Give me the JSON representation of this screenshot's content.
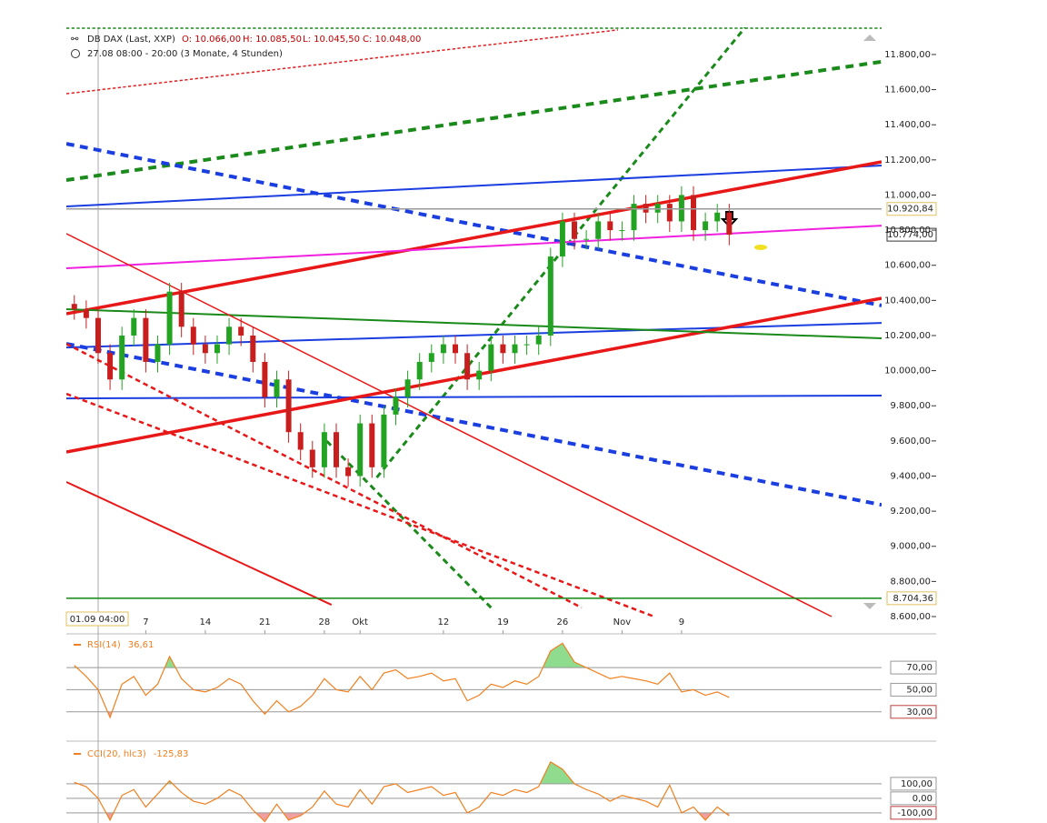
{
  "chart_data": [
    {
      "type": "candlestick",
      "title": "DB DAX (Last, XXP)",
      "ohlc_text": [
        "O: 10.066,00",
        "H: 10.085,50",
        "L: 10.045,50",
        "C: 10.048,00"
      ],
      "subtitle": "27.08 08:00 - 20:00 (3 Monate, 4 Stunden)",
      "crosshair_label": "01.09 04:00",
      "up_color": "#22a322",
      "down_color": "#c81e1e",
      "x": [
        -2,
        -1,
        0,
        1,
        2,
        3,
        4,
        5,
        6,
        7,
        8,
        9,
        10,
        11,
        12,
        13,
        14,
        15,
        16,
        17,
        18,
        19,
        20,
        21,
        22,
        23,
        24,
        25,
        26,
        27,
        28,
        29,
        30,
        31,
        32,
        33,
        34,
        35,
        36,
        37,
        38,
        39,
        40,
        41,
        42,
        43,
        44,
        45,
        46,
        47,
        48,
        49,
        50,
        51,
        52,
        53
      ],
      "open": [
        10380,
        10350,
        10300,
        10100,
        9950,
        10200,
        10300,
        10050,
        10150,
        10450,
        10250,
        10150,
        10100,
        10150,
        10250,
        10200,
        10050,
        9850,
        9950,
        9650,
        9550,
        9450,
        9650,
        9450,
        9400,
        9700,
        9450,
        9750,
        9850,
        9950,
        10050,
        10100,
        10150,
        10100,
        9950,
        10000,
        10150,
        10100,
        10150,
        10150,
        10200,
        10650,
        10850,
        10750,
        10750,
        10850,
        10800,
        10800,
        10950,
        10900,
        10950,
        10850,
        11000,
        10800,
        10850,
        10900
      ],
      "high": [
        10430,
        10400,
        10350,
        10150,
        10250,
        10350,
        10350,
        10200,
        10500,
        10500,
        10300,
        10200,
        10200,
        10300,
        10300,
        10250,
        10100,
        10000,
        10000,
        9700,
        9600,
        9700,
        9700,
        9500,
        9750,
        9750,
        9800,
        9900,
        10000,
        10100,
        10150,
        10200,
        10200,
        10150,
        10050,
        10200,
        10200,
        10200,
        10200,
        10250,
        10700,
        10900,
        10900,
        10800,
        10900,
        10900,
        10850,
        11000,
        11000,
        11000,
        11000,
        11050,
        11050,
        10900,
        10950,
        10950
      ],
      "low": [
        10290,
        10240,
        10040,
        9890,
        9890,
        10140,
        9990,
        9990,
        10090,
        10190,
        10090,
        10040,
        10040,
        10090,
        10140,
        9990,
        9790,
        9790,
        9590,
        9490,
        9390,
        9390,
        9390,
        9340,
        9340,
        9390,
        9390,
        9690,
        9790,
        9890,
        9990,
        10040,
        10040,
        9890,
        9890,
        9940,
        10040,
        10040,
        10090,
        10090,
        10140,
        10590,
        10690,
        10690,
        10690,
        10740,
        10740,
        10740,
        10840,
        10840,
        10790,
        10790,
        10740,
        10740,
        10790,
        10714
      ],
      "close": [
        10350,
        10300,
        10100,
        9950,
        10200,
        10300,
        10050,
        10150,
        10450,
        10250,
        10150,
        10100,
        10150,
        10250,
        10200,
        10050,
        9850,
        9950,
        9650,
        9550,
        9450,
        9650,
        9450,
        9400,
        9700,
        9450,
        9750,
        9850,
        9950,
        10050,
        10100,
        10150,
        10100,
        9950,
        10000,
        10150,
        10100,
        10150,
        10150,
        10200,
        10650,
        10850,
        10750,
        10750,
        10850,
        10800,
        10800,
        10950,
        10900,
        10950,
        10850,
        11000,
        10800,
        10850,
        10900,
        10774
      ],
      "xlim": [
        -2.67,
        65.8
      ],
      "ylim": [
        8512,
        11955
      ],
      "yticks": [
        {
          "value": 8600,
          "label": "8.600,00"
        },
        {
          "value": 8800,
          "label": "8.800,00"
        },
        {
          "value": 9000,
          "label": "9.000,00"
        },
        {
          "value": 9200,
          "label": "9.200,00"
        },
        {
          "value": 9400,
          "label": "9.400,00"
        },
        {
          "value": 9600,
          "label": "9.600,00"
        },
        {
          "value": 9800,
          "label": "9.800,00"
        },
        {
          "value": 10000,
          "label": "10.000,00"
        },
        {
          "value": 10200,
          "label": "10.200,00"
        },
        {
          "value": 10400,
          "label": "10.400,00"
        },
        {
          "value": 10600,
          "label": "10.600,00"
        },
        {
          "value": 10800,
          "label": "10.800,00"
        },
        {
          "value": 11000,
          "label": "11.000,00"
        },
        {
          "value": 11200,
          "label": "11.200,00"
        },
        {
          "value": 11400,
          "label": "11.400,00"
        },
        {
          "value": 11600,
          "label": "11.600,00"
        },
        {
          "value": 11800,
          "label": "11.800,00"
        }
      ],
      "xticks": [
        {
          "value": 4,
          "label": "7"
        },
        {
          "value": 9,
          "label": "14"
        },
        {
          "value": 14,
          "label": "21"
        },
        {
          "value": 19,
          "label": "28"
        },
        {
          "value": 22,
          "label": "Okt"
        },
        {
          "value": 29,
          "label": "12"
        },
        {
          "value": 34,
          "label": "19"
        },
        {
          "value": 39,
          "label": "26"
        },
        {
          "value": 44,
          "label": "Nov"
        },
        {
          "value": 49,
          "label": "9"
        }
      ],
      "price_labels": [
        {
          "value": 10920.84,
          "label": "10.920,84",
          "border": "#e0c060",
          "line": "#9a9a9a"
        },
        {
          "value": 10774,
          "label": "10.774,00",
          "border": "#333333"
        },
        {
          "value": 8704.36,
          "label": "8.704,36",
          "border": "#e0c060",
          "line": "#118811"
        }
      ],
      "trendlines": [
        {
          "color": "#e02020",
          "dash": true,
          "width": 1.5,
          "x": [
            -2.67,
            43.66
          ],
          "y": [
            11577,
            11940
          ]
        },
        {
          "color": "#1a8a1a",
          "dash": true,
          "width": 4,
          "x": [
            -2.67,
            65.8
          ],
          "y": [
            11085,
            11759
          ]
        },
        {
          "color": "#1a8a1a",
          "dash": true,
          "width": 3,
          "x": [
            23.4,
            54.35
          ],
          "y": [
            9392,
            11955
          ]
        },
        {
          "color": "#1a8a1a",
          "dash": true,
          "width": 3,
          "x": [
            19.2,
            33.0
          ],
          "y": [
            9599,
            8651
          ]
        },
        {
          "color": "#1a3ee0",
          "dash": true,
          "width": 4,
          "x": [
            -2.67,
            65.8
          ],
          "y": [
            11292,
            10371
          ]
        },
        {
          "color": "#1a3ee0",
          "dash": true,
          "width": 4,
          "x": [
            -2.67,
            65.8
          ],
          "y": [
            10153,
            9236
          ]
        },
        {
          "color": "#1a3ee0",
          "dash": false,
          "width": 2,
          "x": [
            -2.67,
            65.8
          ],
          "y": [
            10935,
            11168
          ]
        },
        {
          "color": "#1a3ee0",
          "dash": false,
          "width": 2,
          "x": [
            -2.67,
            65.8
          ],
          "y": [
            10132,
            10272
          ]
        },
        {
          "color": "#1a3ee0",
          "dash": false,
          "width": 2,
          "x": [
            -2.67,
            65.8
          ],
          "y": [
            9842,
            9858
          ]
        },
        {
          "color": "#e81818",
          "dash": false,
          "width": 3.5,
          "x": [
            -2.67,
            65.8
          ],
          "y": [
            10324,
            11189
          ]
        },
        {
          "color": "#e81818",
          "dash": false,
          "width": 3.5,
          "x": [
            -2.67,
            65.8
          ],
          "y": [
            9537,
            10412
          ]
        },
        {
          "color": "#f020e0",
          "dash": false,
          "width": 2,
          "x": [
            -2.67,
            65.8
          ],
          "y": [
            10583,
            10826
          ]
        },
        {
          "color": "#1a8a1a",
          "dash": false,
          "width": 2,
          "x": [
            -2.67,
            65.8
          ],
          "y": [
            10350,
            10184
          ]
        },
        {
          "color": "#e81818",
          "dash": false,
          "width": 1.5,
          "x": [
            -2.67,
            61.6
          ],
          "y": [
            10780,
            8600
          ]
        },
        {
          "color": "#e81818",
          "dash": false,
          "width": 2,
          "x": [
            -2.67,
            19.6
          ],
          "y": [
            9366,
            8667
          ]
        },
        {
          "color": "#e81818",
          "dash": true,
          "width": 2.5,
          "x": [
            -2.67,
            46.7
          ],
          "y": [
            9868,
            8600
          ]
        },
        {
          "color": "#e81818",
          "dash": true,
          "width": 2.5,
          "x": [
            -2.67,
            40.6
          ],
          "y": [
            10153,
            8651
          ]
        },
        {
          "color": "#1a8a1a",
          "dash": true,
          "width": 1.5,
          "x": [
            -2.67,
            65.8
          ],
          "y": [
            11950,
            11950
          ]
        }
      ]
    },
    {
      "type": "line",
      "name": "RSI(14)",
      "readout": "36,61",
      "color": "#f08020",
      "upper_fill": "#8fdc8f",
      "lower_fill": "#f0a0a0",
      "x": [
        -2,
        -1,
        0,
        1,
        2,
        3,
        4,
        5,
        6,
        7,
        8,
        9,
        10,
        11,
        12,
        13,
        14,
        15,
        16,
        17,
        18,
        19,
        20,
        21,
        22,
        23,
        24,
        25,
        26,
        27,
        28,
        29,
        30,
        31,
        32,
        33,
        34,
        35,
        36,
        37,
        38,
        39,
        40,
        41,
        42,
        43,
        44,
        45,
        46,
        47,
        48,
        49,
        50,
        51,
        52,
        53
      ],
      "values": [
        72,
        62,
        50,
        25,
        55,
        62,
        45,
        55,
        80,
        60,
        50,
        48,
        52,
        60,
        55,
        40,
        28,
        40,
        30,
        35,
        45,
        60,
        50,
        48,
        62,
        50,
        65,
        68,
        60,
        62,
        65,
        58,
        60,
        40,
        45,
        55,
        52,
        58,
        55,
        62,
        85,
        92,
        75,
        70,
        65,
        60,
        62,
        60,
        58,
        55,
        65,
        48,
        50,
        45,
        48,
        43
      ],
      "ylim": [
        6,
        98
      ],
      "yticks": [
        {
          "value": 70,
          "label": "70,00"
        },
        {
          "value": 50,
          "label": "50,00"
        },
        {
          "value": 30,
          "label": "30,00"
        }
      ]
    },
    {
      "type": "line",
      "name": "CCI(20, hlc3)",
      "readout": "-125,83",
      "color": "#f08020",
      "upper_fill": "#8fdc8f",
      "lower_fill": "#f0a0a0",
      "x": [
        -2,
        -1,
        0,
        1,
        2,
        3,
        4,
        5,
        6,
        7,
        8,
        9,
        10,
        11,
        12,
        13,
        14,
        15,
        16,
        17,
        18,
        19,
        20,
        21,
        22,
        23,
        24,
        25,
        26,
        27,
        28,
        29,
        30,
        31,
        32,
        33,
        34,
        35,
        36,
        37,
        38,
        39,
        40,
        41,
        42,
        43,
        44,
        45,
        46,
        47,
        48,
        49,
        50,
        51,
        52,
        53
      ],
      "values": [
        110,
        80,
        0,
        -150,
        20,
        60,
        -60,
        30,
        120,
        40,
        -20,
        -40,
        0,
        60,
        20,
        -80,
        -160,
        -40,
        -150,
        -120,
        -60,
        50,
        -40,
        -60,
        60,
        -40,
        80,
        100,
        40,
        60,
        80,
        20,
        40,
        -100,
        -60,
        40,
        20,
        60,
        40,
        80,
        250,
        200,
        100,
        60,
        30,
        -20,
        20,
        0,
        -20,
        -60,
        90,
        -100,
        -60,
        -150,
        -60,
        -120
      ],
      "ylim": [
        -170,
        362
      ],
      "yticks": [
        {
          "value": 100,
          "label": "100,00"
        },
        {
          "value": 0,
          "label": "0,00"
        },
        {
          "value": -100,
          "label": "-100,00"
        }
      ]
    }
  ]
}
